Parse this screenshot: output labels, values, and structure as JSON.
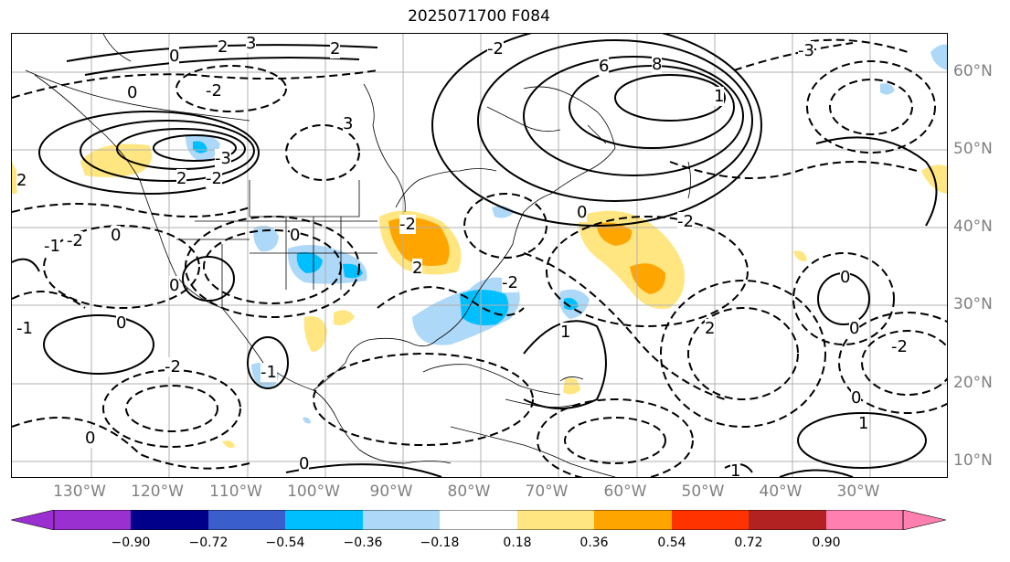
{
  "title": "2025071700 F084",
  "longitude_labels": [
    "130°W",
    "120°W",
    "110°W",
    "100°W",
    "90°W",
    "80°W",
    "70°W",
    "60°W",
    "50°W",
    "40°W",
    "30°W"
  ],
  "latitude_labels": [
    "60°N",
    "50°N",
    "40°N",
    "30°N",
    "20°N",
    "10°N"
  ],
  "colorbar": {
    "tick_labels": [
      "−0.90",
      "−0.72",
      "−0.54",
      "−0.36",
      "−0.18",
      "0.18",
      "0.36",
      "0.54",
      "0.72",
      "0.90"
    ],
    "colors": [
      "#9b30d0",
      "#00008b",
      "#3a5fcd",
      "#00bfff",
      "#add8f8",
      "#ffffff",
      "#ffe680",
      "#ffa500",
      "#ff3300",
      "#b22222",
      "#ff80b0"
    ]
  },
  "contour_labels": [
    {
      "text": "0"
    },
    {
      "text": "2"
    },
    {
      "text": "3"
    },
    {
      "text": "2"
    },
    {
      "text": "-2"
    },
    {
      "text": "3"
    },
    {
      "text": "6"
    },
    {
      "text": "8"
    },
    {
      "text": "-3"
    },
    {
      "text": "-2"
    },
    {
      "text": "1"
    },
    {
      "text": "2"
    },
    {
      "text": "-2"
    },
    {
      "text": "-3"
    },
    {
      "text": "0"
    },
    {
      "text": "-1"
    },
    {
      "text": "0"
    },
    {
      "text": "-2"
    },
    {
      "text": "2"
    },
    {
      "text": "0"
    },
    {
      "text": "0"
    },
    {
      "text": "-1"
    },
    {
      "text": "0"
    },
    {
      "text": "-2"
    },
    {
      "text": "-2"
    },
    {
      "text": "0"
    },
    {
      "text": "-2"
    },
    {
      "text": "1"
    },
    {
      "text": "0"
    },
    {
      "text": "0"
    },
    {
      "text": "-2"
    },
    {
      "text": "2"
    },
    {
      "text": "1"
    },
    {
      "text": "0"
    },
    {
      "text": "-2"
    },
    {
      "text": "0"
    },
    {
      "text": "0"
    },
    {
      "text": "-1"
    },
    {
      "text": "1"
    },
    {
      "text": "2"
    }
  ]
}
